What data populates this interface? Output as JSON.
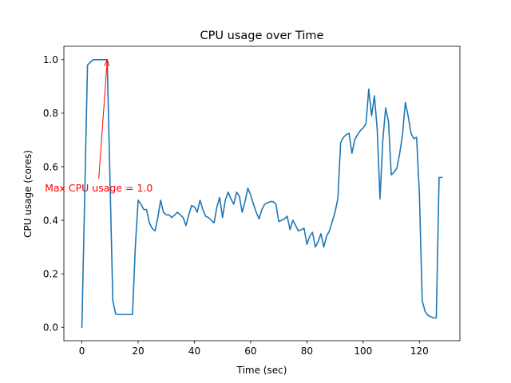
{
  "chart_data": {
    "type": "line",
    "title": "CPU usage over Time",
    "xlabel": "Time (sec)",
    "ylabel": "CPU usage (cores)",
    "xlim": [
      -6.4,
      134.4
    ],
    "ylim": [
      -0.05,
      1.05
    ],
    "x_ticks": [
      0,
      20,
      40,
      60,
      80,
      100,
      120
    ],
    "x_tick_labels": [
      "0",
      "20",
      "40",
      "60",
      "80",
      "100",
      "120"
    ],
    "y_ticks": [
      0.0,
      0.2,
      0.4,
      0.6,
      0.8,
      1.0
    ],
    "y_tick_labels": [
      "0.0",
      "0.2",
      "0.4",
      "0.6",
      "0.8",
      "1.0"
    ],
    "grid": false,
    "series": [
      {
        "color": "#1f77b4",
        "x": [
          0,
          2,
          3,
          4,
          5,
          6,
          7,
          8,
          9,
          10,
          11,
          12,
          13,
          14,
          15,
          16,
          17,
          18,
          19,
          20,
          21,
          22,
          23,
          24,
          25,
          26,
          27,
          28,
          29,
          30,
          31,
          32,
          33,
          34,
          35,
          36,
          37,
          38,
          39,
          40,
          41,
          42,
          43,
          44,
          45,
          46,
          47,
          48,
          49,
          50,
          51,
          52,
          53,
          54,
          55,
          56,
          57,
          58,
          59,
          60,
          61,
          62,
          63,
          64,
          65,
          66,
          67,
          68,
          69,
          70,
          71,
          72,
          73,
          74,
          75,
          76,
          77,
          78,
          79,
          80,
          81,
          82,
          83,
          84,
          85,
          86,
          87,
          88,
          89,
          90,
          91,
          92,
          93,
          94,
          95,
          96,
          97,
          98,
          99,
          100,
          101,
          102,
          103,
          104,
          105,
          106,
          107,
          108,
          109,
          110,
          111,
          112,
          113,
          114,
          115,
          116,
          117,
          118,
          119,
          120,
          121,
          122,
          123,
          124,
          125,
          126,
          127,
          128
        ],
        "y": [
          0.0,
          0.98,
          0.99,
          1.0,
          1.0,
          1.0,
          1.0,
          1.0,
          1.0,
          0.55,
          0.1,
          0.05,
          0.048,
          0.048,
          0.048,
          0.048,
          0.048,
          0.048,
          0.3,
          0.475,
          0.46,
          0.44,
          0.44,
          0.39,
          0.37,
          0.36,
          0.41,
          0.475,
          0.43,
          0.42,
          0.42,
          0.41,
          0.42,
          0.43,
          0.42,
          0.41,
          0.38,
          0.42,
          0.455,
          0.45,
          0.43,
          0.475,
          0.44,
          0.415,
          0.41,
          0.4,
          0.39,
          0.45,
          0.485,
          0.41,
          0.475,
          0.505,
          0.48,
          0.46,
          0.505,
          0.49,
          0.43,
          0.47,
          0.52,
          0.495,
          0.46,
          0.43,
          0.405,
          0.44,
          0.46,
          0.465,
          0.47,
          0.47,
          0.46,
          0.395,
          0.4,
          0.405,
          0.415,
          0.365,
          0.4,
          0.38,
          0.36,
          0.365,
          0.37,
          0.31,
          0.34,
          0.355,
          0.3,
          0.32,
          0.35,
          0.3,
          0.34,
          0.36,
          0.395,
          0.43,
          0.48,
          0.69,
          0.71,
          0.72,
          0.725,
          0.65,
          0.7,
          0.72,
          0.735,
          0.745,
          0.76,
          0.89,
          0.79,
          0.865,
          0.74,
          0.48,
          0.7,
          0.82,
          0.77,
          0.57,
          0.58,
          0.595,
          0.65,
          0.72,
          0.84,
          0.79,
          0.725,
          0.705,
          0.71,
          0.5,
          0.1,
          0.06,
          0.045,
          0.04,
          0.035,
          0.035,
          0.56,
          0.56
        ]
      }
    ],
    "annotation": {
      "text": "Max CPU usage = 1.0",
      "color": "#ff0000",
      "point": [
        9,
        1.0
      ],
      "text_anchor_data": [
        6,
        0.555
      ]
    }
  }
}
